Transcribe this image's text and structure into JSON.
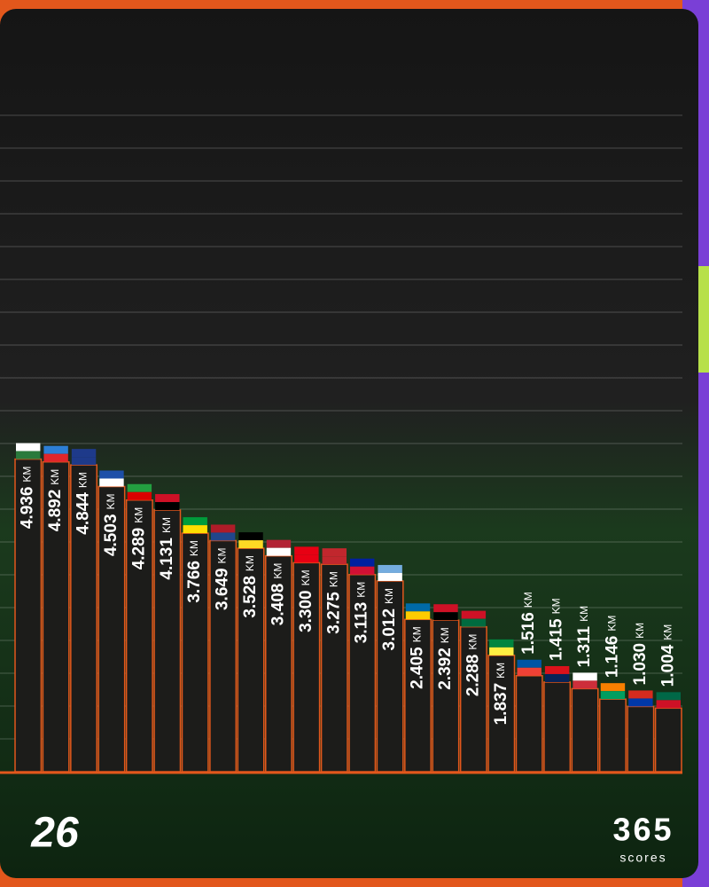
{
  "chart_data": {
    "type": "bar",
    "categories": [
      null,
      null,
      null,
      null,
      null,
      null,
      null,
      null,
      null,
      null,
      null,
      null,
      null,
      null,
      null,
      null,
      null,
      null,
      null,
      null,
      null,
      null,
      null,
      null
    ],
    "values": [
      4.936,
      4.892,
      4.844,
      4.503,
      4.289,
      4.131,
      3.766,
      3.649,
      3.528,
      3.408,
      3.3,
      3.275,
      3.113,
      3.012,
      2.405,
      2.392,
      2.288,
      1.837,
      1.516,
      1.415,
      1.311,
      1.146,
      1.03,
      1.004
    ],
    "value_labels": [
      "4.936",
      "4.892",
      "4.844",
      "4.503",
      "4.289",
      "4.131",
      "3.766",
      "3.649",
      "3.528",
      "3.408",
      "3.300",
      "3.275",
      "3.113",
      "3.012",
      "2.405",
      "2.392",
      "2.288",
      "1.837",
      "1.516",
      "1.415",
      "1.311",
      "1.146",
      "1.030",
      "1.004"
    ],
    "unit": "KM",
    "color": "#1c1c1a",
    "edge_color": "#e2571c",
    "ylim": [
      0,
      5
    ]
  },
  "branding": {
    "event_logo": "26",
    "brand": "365",
    "brand_sub": "scores"
  }
}
